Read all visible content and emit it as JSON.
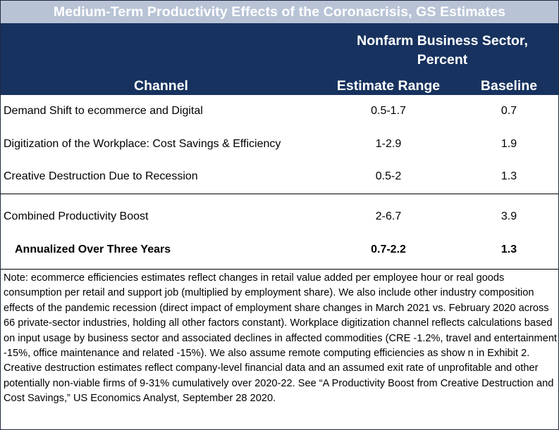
{
  "title": "Medium-Term Productivity Effects of the Coronacrisis, GS Estimates",
  "header": {
    "group_line1": "Nonfarm Business Sector,",
    "group_line2": "Percent",
    "col_channel": "Channel",
    "col_estimate": "Estimate Range",
    "col_baseline": "Baseline"
  },
  "rows": [
    {
      "channel": "Demand Shift to ecommerce and Digital",
      "estimate": "0.5-1.7",
      "baseline": "0.7"
    },
    {
      "channel": "Digitization of the Workplace: Cost Savings & Efficiency",
      "estimate": "1-2.9",
      "baseline": "1.9"
    },
    {
      "channel": "Creative Destruction Due to Recession",
      "estimate": "0.5-2",
      "baseline": "1.3"
    }
  ],
  "summary": [
    {
      "channel": "Combined Productivity Boost",
      "estimate": "2-6.7",
      "baseline": "3.9"
    },
    {
      "channel": "Annualized Over Three Years",
      "estimate": "0.7-2.2",
      "baseline": "1.3"
    }
  ],
  "note": "Note:  ecommerce efficiencies estimates reflect changes in retail value added per employee hour or real goods consumption per retail and support job (multiplied by employment share). We also include other industry composition effects of the pandemic recession (direct impact of employment share changes in March 2021 vs. February 2020 across 66 private-sector industries, holding all other factors constant). Workplace digitization channel reflects calculations based on input usage by business sector and associated declines in affected commodities (CRE -1.2%, travel and entertainment -15%, office maintenance and related -15%). We also assume remote computing efficiencies as show n in Exhibit 2. Creative destruction estimates reflect company-level financial data and an assumed exit rate of unprofitable and other potentially non-viable firms of 9-31% cumulatively over 2020-22. See “A Productivity Boost from Creative Destruction and Cost Savings,” US Economics Analyst, September 28 2020."
}
